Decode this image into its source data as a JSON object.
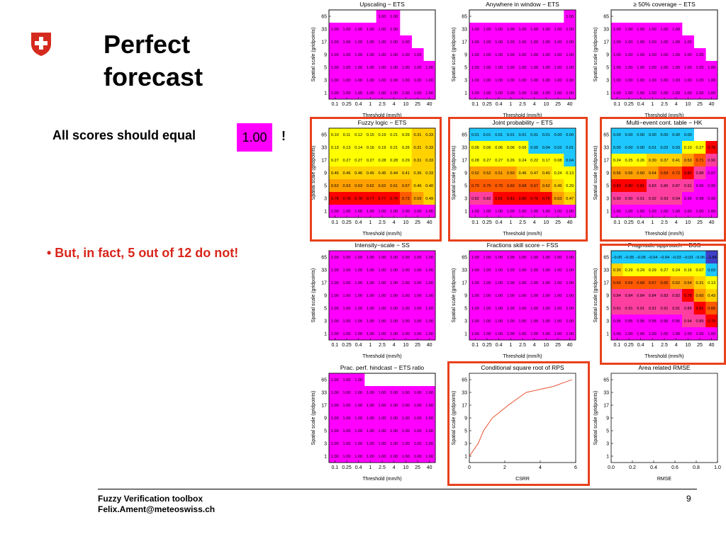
{
  "slide": {
    "title": "Perfect\nforecast",
    "subtitle": "All scores should equal",
    "badge_value": "1.00",
    "exclamation": "!",
    "bullet": "• But, in fact, 5 out of 12 do not!",
    "footer_line1": "Fuzzy Verification toolbox",
    "footer_line2": "Felix.Ament@meteoswiss.ch",
    "page_number": "9"
  },
  "colors": {
    "accent_red": "#e8411c",
    "magenta": "#ff00ff",
    "logo_red": "#d52b1e"
  },
  "chart_data": [
    {
      "type": "heatmap",
      "title": "Upscaling − ETS",
      "xlabel": "Threshold (mm/h)",
      "ylabel": "Spatial scale (gridpoints)",
      "x_ticks": [
        "0.1",
        "0.25",
        "0.4",
        "1",
        "2.5",
        "4",
        "10",
        "25",
        "40"
      ],
      "y_ticks": [
        "65",
        "33",
        "17",
        "9",
        "5",
        "3",
        "1"
      ],
      "highlighted": false,
      "cells": [
        [
          "",
          "",
          "",
          "",
          "1.00",
          "1.00",
          "",
          "",
          ""
        ],
        [
          "1.00",
          "1.00",
          "1.00",
          "1.00",
          "1.00",
          "1.00",
          "",
          "",
          ""
        ],
        [
          "1.00",
          "1.00",
          "1.00",
          "1.00",
          "1.00",
          "1.00",
          "1.00",
          "",
          ""
        ],
        [
          "1.00",
          "1.00",
          "1.00",
          "1.00",
          "1.00",
          "1.00",
          "1.00",
          "1.00",
          ""
        ],
        [
          "1.00",
          "1.00",
          "1.00",
          "1.00",
          "1.00",
          "1.00",
          "1.00",
          "1.00",
          "1.00"
        ],
        [
          "1.00",
          "1.00",
          "1.00",
          "1.00",
          "1.00",
          "1.00",
          "1.00",
          "1.00",
          "1.00"
        ],
        [
          "1.00",
          "1.00",
          "1.00",
          "1.00",
          "1.00",
          "1.00",
          "1.00",
          "1.00",
          "1.00"
        ]
      ]
    },
    {
      "type": "heatmap",
      "title": "Anywhere in window − ETS",
      "xlabel": "Threshold (mm/h)",
      "ylabel": "Spatial scale (gridpoints)",
      "x_ticks": [
        "0.1",
        "0.25",
        "0.4",
        "1",
        "2.5",
        "4",
        "10",
        "25",
        "40"
      ],
      "y_ticks": [
        "65",
        "33",
        "17",
        "9",
        "5",
        "3",
        "1"
      ],
      "highlighted": false,
      "cells": [
        [
          "",
          "",
          "",
          "",
          "",
          "",
          "",
          "",
          "1.00"
        ],
        [
          "1.00",
          "1.00",
          "1.00",
          "1.00",
          "1.00",
          "1.00",
          "1.00",
          "1.00",
          "1.00"
        ],
        [
          "1.00",
          "1.00",
          "1.00",
          "1.00",
          "1.00",
          "1.00",
          "1.00",
          "1.00",
          "1.00"
        ],
        [
          "1.00",
          "1.00",
          "1.00",
          "1.00",
          "1.00",
          "1.00",
          "1.00",
          "1.00",
          "1.00"
        ],
        [
          "1.00",
          "1.00",
          "1.00",
          "1.00",
          "1.00",
          "1.00",
          "1.00",
          "1.00",
          "1.00"
        ],
        [
          "1.00",
          "1.00",
          "1.00",
          "1.00",
          "1.00",
          "1.00",
          "1.00",
          "1.00",
          "1.00"
        ],
        [
          "1.00",
          "1.00",
          "1.00",
          "1.00",
          "1.00",
          "1.00",
          "1.00",
          "1.00",
          "1.00"
        ]
      ]
    },
    {
      "type": "heatmap",
      "title": "≥ 50% coverage − ETS",
      "xlabel": "Threshold (mm/h)",
      "ylabel": "Spatial scale (gridpoints)",
      "x_ticks": [
        "0.1",
        "0.25",
        "0.4",
        "1",
        "2.5",
        "4",
        "10",
        "25",
        "40"
      ],
      "y_ticks": [
        "65",
        "33",
        "17",
        "9",
        "5",
        "3",
        "1"
      ],
      "highlighted": false,
      "cells": [
        [
          "",
          "",
          "",
          "",
          "",
          "",
          "",
          "",
          ""
        ],
        [
          "1.00",
          "1.00",
          "1.00",
          "1.00",
          "1.00",
          "1.00",
          "",
          "",
          ""
        ],
        [
          "1.00",
          "1.00",
          "1.00",
          "1.00",
          "1.00",
          "1.00",
          "1.00",
          "",
          ""
        ],
        [
          "1.00",
          "1.00",
          "1.00",
          "1.00",
          "1.00",
          "1.00",
          "1.00",
          "1.00",
          ""
        ],
        [
          "1.00",
          "1.00",
          "1.00",
          "1.00",
          "1.00",
          "1.00",
          "1.00",
          "1.00",
          "1.00"
        ],
        [
          "1.00",
          "1.00",
          "1.00",
          "1.00",
          "1.00",
          "1.00",
          "1.00",
          "1.00",
          "1.00"
        ],
        [
          "1.00",
          "1.00",
          "1.00",
          "1.00",
          "1.00",
          "1.00",
          "1.00",
          "1.00",
          "1.00"
        ]
      ]
    },
    {
      "type": "heatmap",
      "title": "Fuzzy logic − ETS",
      "xlabel": "Threshold (mm/h)",
      "ylabel": "Spatial scale (gridpoints)",
      "x_ticks": [
        "0.1",
        "0.25",
        "0.4",
        "1",
        "2.5",
        "4",
        "10",
        "25",
        "40"
      ],
      "y_ticks": [
        "65",
        "33",
        "17",
        "9",
        "5",
        "3",
        "1"
      ],
      "highlighted": true,
      "cells": [
        [
          "0.10",
          "0.11",
          "0.12",
          "0.15",
          "0.19",
          "0.21",
          "0.26",
          "0.31",
          "0.33"
        ],
        [
          "0.13",
          "0.13",
          "0.14",
          "0.16",
          "0.19",
          "0.21",
          "0.26",
          "0.31",
          "0.33"
        ],
        [
          "0.27",
          "0.27",
          "0.27",
          "0.27",
          "0.28",
          "0.28",
          "0.29",
          "0.31",
          "0.33"
        ],
        [
          "0.46",
          "0.46",
          "0.46",
          "0.45",
          "0.45",
          "0.44",
          "0.41",
          "0.36",
          "0.33"
        ],
        [
          "0.63",
          "0.63",
          "0.63",
          "0.62",
          "0.62",
          "0.61",
          "0.57",
          "0.46",
          "0.40"
        ],
        [
          "0.78",
          "0.78",
          "0.78",
          "0.77",
          "0.77",
          "0.76",
          "0.73",
          "0.59",
          "0.49"
        ],
        [
          "1.00",
          "1.00",
          "1.00",
          "1.00",
          "1.00",
          "1.00",
          "1.00",
          "1.00",
          "1.00"
        ]
      ]
    },
    {
      "type": "heatmap",
      "title": "Joint probability − ETS",
      "xlabel": "Threshold (mm/h)",
      "ylabel": "Spatial scale (gridpoints)",
      "x_ticks": [
        "0.1",
        "0.25",
        "0.4",
        "1",
        "2.5",
        "4",
        "10",
        "25",
        "40"
      ],
      "y_ticks": [
        "65",
        "33",
        "17",
        "9",
        "5",
        "3",
        "1"
      ],
      "highlighted": true,
      "cells": [
        [
          "0.01",
          "0.01",
          "0.01",
          "0.01",
          "0.01",
          "0.01",
          "0.01",
          "0.00",
          "0.00"
        ],
        [
          "0.06",
          "0.06",
          "0.06",
          "0.06",
          "0.06",
          "0.05",
          "0.04",
          "0.02",
          "0.01"
        ],
        [
          "0.28",
          "0.27",
          "0.27",
          "0.26",
          "0.24",
          "0.22",
          "0.17",
          "0.08",
          "0.04"
        ],
        [
          "0.52",
          "0.52",
          "0.51",
          "0.50",
          "0.46",
          "0.47",
          "0.40",
          "0.24",
          "0.13"
        ],
        [
          "0.70",
          "0.70",
          "0.70",
          "0.69",
          "0.68",
          "0.67",
          "0.62",
          "0.45",
          "0.29"
        ],
        [
          "0.82",
          "0.82",
          "0.81",
          "0.81",
          "0.80",
          "0.79",
          "0.76",
          "0.63",
          "0.47"
        ],
        [
          "1.00",
          "1.00",
          "1.00",
          "1.00",
          "1.00",
          "1.00",
          "1.00",
          "1.00",
          "1.00"
        ]
      ]
    },
    {
      "type": "heatmap",
      "title": "Multi−event cont. table − HK",
      "xlabel": "Threshold (mm/h)",
      "ylabel": "Spatial scale (gridpoints)",
      "x_ticks": [
        "0.1",
        "0.25",
        "0.4",
        "1",
        "2.5",
        "4",
        "10",
        "25",
        "40"
      ],
      "y_ticks": [
        "65",
        "33",
        "17",
        "9",
        "5",
        "3",
        "1"
      ],
      "highlighted": true,
      "cells": [
        [
          "0.00",
          "0.00",
          "0.00",
          "0.00",
          "0.00",
          "0.00",
          "0.00",
          "",
          ""
        ],
        [
          "0.00",
          "0.00",
          "0.00",
          "0.01",
          "0.02",
          "0.03",
          "0.10",
          "0.27",
          "0.78"
        ],
        [
          "0.24",
          "0.25",
          "0.26",
          "0.30",
          "0.37",
          "0.41",
          "0.53",
          "0.71",
          "0.90"
        ],
        [
          "0.56",
          "0.56",
          "0.60",
          "0.64",
          "0.69",
          "0.72",
          "0.80",
          "0.88",
          "0.97"
        ],
        [
          "0.80",
          "0.80",
          "0.81",
          "0.83",
          "0.86",
          "0.87",
          "0.91",
          "0.95",
          "0.99"
        ],
        [
          "0.90",
          "0.90",
          "0.91",
          "0.92",
          "0.93",
          "0.94",
          "0.96",
          "0.98",
          "0.99"
        ],
        [
          "1.00",
          "1.00",
          "1.00",
          "1.00",
          "1.00",
          "1.00",
          "1.00",
          "1.00",
          "1.00"
        ]
      ]
    },
    {
      "type": "heatmap",
      "title": "Intensity−scale − SS",
      "xlabel": "Threshold (mm/h)",
      "ylabel": "Spatial scale (gridpoints)",
      "x_ticks": [
        "0.1",
        "0.25",
        "0.4",
        "1",
        "2.5",
        "4",
        "10",
        "25",
        "40"
      ],
      "y_ticks": [
        "65",
        "33",
        "17",
        "9",
        "5",
        "3",
        "1"
      ],
      "highlighted": false,
      "cells": [
        [
          "1.00",
          "1.00",
          "1.00",
          "1.00",
          "1.00",
          "1.00",
          "1.00",
          "1.00",
          "1.00"
        ],
        [
          "1.00",
          "1.00",
          "1.00",
          "1.00",
          "1.00",
          "1.00",
          "1.00",
          "1.00",
          "1.00"
        ],
        [
          "1.00",
          "1.00",
          "1.00",
          "1.00",
          "1.00",
          "1.00",
          "1.00",
          "1.00",
          "1.00"
        ],
        [
          "1.00",
          "1.00",
          "1.00",
          "1.00",
          "1.00",
          "1.00",
          "1.00",
          "1.00",
          "1.00"
        ],
        [
          "1.00",
          "1.00",
          "1.00",
          "1.00",
          "1.00",
          "1.00",
          "1.00",
          "1.00",
          "1.00"
        ],
        [
          "1.00",
          "1.00",
          "1.00",
          "1.00",
          "1.00",
          "1.00",
          "1.00",
          "1.00",
          "1.00"
        ],
        [
          "1.00",
          "1.00",
          "1.00",
          "1.00",
          "1.00",
          "1.00",
          "1.00",
          "1.00",
          "1.00"
        ]
      ]
    },
    {
      "type": "heatmap",
      "title": "Fractions skill score − FSS",
      "xlabel": "Threshold (mm/h)",
      "ylabel": "Spatial scale (gridpoints)",
      "x_ticks": [
        "0.1",
        "0.25",
        "0.4",
        "1",
        "2.5",
        "4",
        "10",
        "25",
        "40"
      ],
      "y_ticks": [
        "65",
        "33",
        "17",
        "9",
        "5",
        "3",
        "1"
      ],
      "highlighted": false,
      "cells": [
        [
          "1.00",
          "1.00",
          "1.00",
          "1.00",
          "1.00",
          "1.00",
          "1.00",
          "1.00",
          "1.00"
        ],
        [
          "1.00",
          "1.00",
          "1.00",
          "1.00",
          "1.00",
          "1.00",
          "1.00",
          "1.00",
          "1.00"
        ],
        [
          "1.00",
          "1.00",
          "1.00",
          "1.00",
          "1.00",
          "1.00",
          "1.00",
          "1.00",
          "1.00"
        ],
        [
          "1.00",
          "1.00",
          "1.00",
          "1.00",
          "1.00",
          "1.00",
          "1.00",
          "1.00",
          "1.00"
        ],
        [
          "1.00",
          "1.00",
          "1.00",
          "1.00",
          "1.00",
          "1.00",
          "1.00",
          "1.00",
          "1.00"
        ],
        [
          "1.00",
          "1.00",
          "1.00",
          "1.00",
          "1.00",
          "1.00",
          "1.00",
          "1.00",
          "1.00"
        ],
        [
          "1.00",
          "1.00",
          "1.00",
          "1.00",
          "1.00",
          "1.00",
          "1.00",
          "1.00",
          "1.00"
        ]
      ]
    },
    {
      "type": "heatmap",
      "title": "Pragmatic approach − BSS",
      "xlabel": "Threshold (mm/h)",
      "ylabel": "Spatial scale (gridpoints)",
      "x_ticks": [
        "0.1",
        "0.25",
        "0.4",
        "1",
        "2.5",
        "4",
        "10",
        "25",
        "40"
      ],
      "y_ticks": [
        "65",
        "33",
        "17",
        "9",
        "5",
        "3",
        "1"
      ],
      "highlighted": true,
      "cells": [
        [
          "−0.05",
          "−0.05",
          "−0.05",
          "−0.04",
          "−0.04",
          "−0.03",
          "−0.03",
          "−0.06",
          "−1.84"
        ],
        [
          "0.30",
          "0.29",
          "0.29",
          "0.29",
          "0.27",
          "0.24",
          "0.16",
          "0.07",
          "0.03"
        ],
        [
          "0.69",
          "0.69",
          "0.68",
          "0.67",
          "0.65",
          "0.62",
          "0.54",
          "0.31",
          "0.13"
        ],
        [
          "0.84",
          "0.84",
          "0.84",
          "0.84",
          "0.83",
          "0.82",
          "0.78",
          "0.60",
          "0.43"
        ],
        [
          "0.91",
          "0.91",
          "0.91",
          "0.91",
          "0.91",
          "0.91",
          "0.89",
          "0.81",
          "0.66"
        ],
        [
          "0.95",
          "0.95",
          "0.95",
          "0.95",
          "0.95",
          "0.95",
          "0.94",
          "0.89",
          "0.79"
        ],
        [
          "1.00",
          "1.00",
          "1.00",
          "1.00",
          "1.00",
          "1.00",
          "1.00",
          "1.00",
          "1.00"
        ]
      ]
    },
    {
      "type": "heatmap",
      "title": "Prac. perf. hindcast − ETS ratio",
      "xlabel": "Threshold (mm/h)",
      "ylabel": "Spatial scale (gridpoints)",
      "x_ticks": [
        "0.1",
        "0.25",
        "0.4",
        "1",
        "2.5",
        "4",
        "10",
        "25",
        "40"
      ],
      "y_ticks": [
        "65",
        "33",
        "17",
        "9",
        "5",
        "3",
        "1"
      ],
      "highlighted": false,
      "cells": [
        [
          "1.00",
          "1.00",
          "1.00",
          "",
          "",
          "",
          "",
          "",
          ""
        ],
        [
          "1.00",
          "1.00",
          "1.00",
          "1.00",
          "1.00",
          "1.00",
          "1.00",
          "1.00",
          "1.00"
        ],
        [
          "1.00",
          "1.00",
          "1.00",
          "1.00",
          "1.00",
          "1.00",
          "1.00",
          "1.00",
          "1.00"
        ],
        [
          "1.00",
          "1.00",
          "1.00",
          "1.00",
          "1.00",
          "1.00",
          "1.00",
          "1.00",
          "1.00"
        ],
        [
          "1.00",
          "1.00",
          "1.00",
          "1.00",
          "1.00",
          "1.00",
          "1.00",
          "1.00",
          "1.00"
        ],
        [
          "1.00",
          "1.00",
          "1.00",
          "1.00",
          "1.00",
          "1.00",
          "1.00",
          "1.00",
          "1.00"
        ],
        [
          "1.00",
          "1.00",
          "1.00",
          "1.00",
          "1.00",
          "1.00",
          "1.00",
          "1.00",
          "1.00"
        ]
      ]
    },
    {
      "type": "line",
      "title": "Conditional square root of RPS",
      "xlabel": "CSRR",
      "ylabel": "Spatial scale (gridpoints)",
      "x_ticks": [
        "0",
        "2",
        "4",
        "6"
      ],
      "xlim": [
        0,
        6
      ],
      "y_ticks": [
        "65",
        "33",
        "17",
        "9",
        "5",
        "3",
        "1"
      ],
      "highlighted": true,
      "points": [
        [
          0.0,
          "1"
        ],
        [
          0.5,
          "3"
        ],
        [
          0.8,
          "5"
        ],
        [
          1.3,
          "9"
        ],
        [
          2.2,
          "17"
        ],
        [
          3.2,
          "33"
        ],
        [
          4.7,
          "45"
        ],
        [
          5.8,
          "65"
        ]
      ]
    },
    {
      "type": "line",
      "title": "Area related RMSE",
      "xlabel": "RMSE",
      "ylabel": "Spatial scale (gridpoints)",
      "x_ticks": [
        "0.0",
        "0.2",
        "0.4",
        "0.6",
        "0.8",
        "1.0"
      ],
      "xlim": [
        0,
        1
      ],
      "y_ticks": [
        "65",
        "33",
        "17",
        "9",
        "5",
        "3",
        "1"
      ],
      "highlighted": false,
      "points": []
    }
  ]
}
